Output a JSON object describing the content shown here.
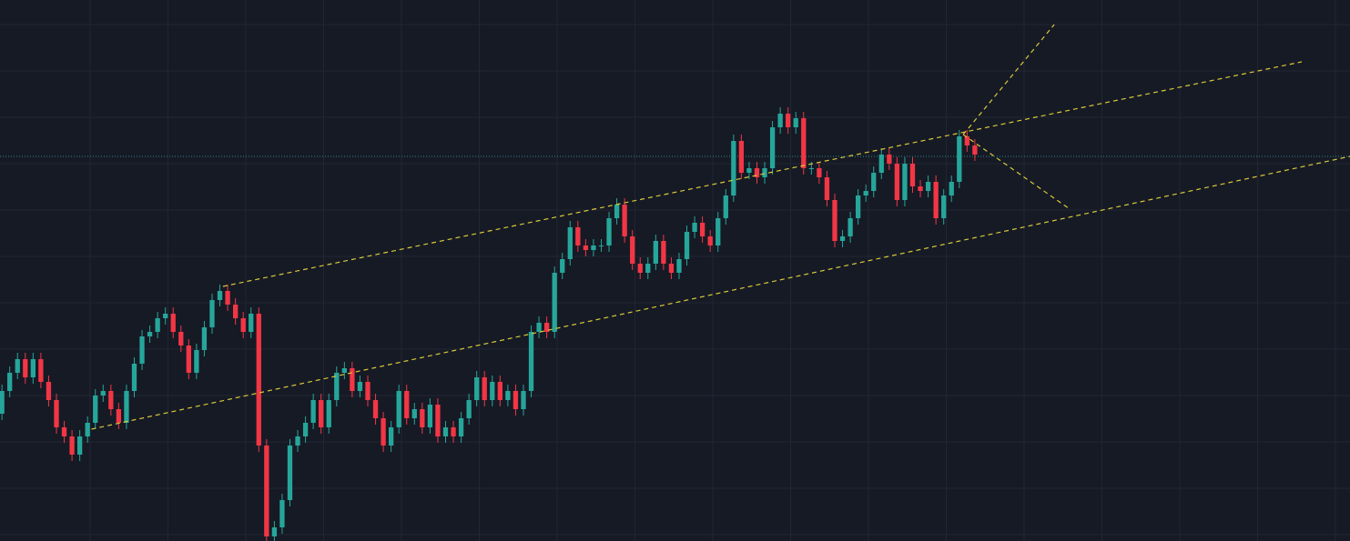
{
  "chart_data": {
    "type": "candlestick",
    "xlim": [
      -0.25,
      173.2
    ],
    "ylim": [
      0,
      595
    ],
    "grid": true,
    "up_color": "#26a69a",
    "down_color": "#f23645",
    "series": {
      "open": [
        140,
        165,
        185,
        200,
        180,
        200,
        175,
        155,
        125,
        115,
        95,
        115,
        130,
        160,
        165,
        145,
        130,
        165,
        195,
        225,
        230,
        245,
        250,
        230,
        215,
        185,
        210,
        235,
        265,
        275,
        260,
        245,
        230,
        250,
        105,
        5,
        15,
        45,
        105,
        115,
        130,
        155,
        125,
        155,
        185,
        190,
        165,
        175,
        155,
        135,
        105,
        125,
        165,
        135,
        145,
        125,
        150,
        115,
        125,
        115,
        135,
        155,
        180,
        155,
        175,
        155,
        165,
        145,
        165,
        230,
        240,
        230,
        295,
        310,
        345,
        325,
        320,
        325,
        325,
        355,
        370,
        335,
        305,
        295,
        305,
        330,
        305,
        295,
        310,
        340,
        350,
        335,
        325,
        355,
        380,
        440,
        405,
        410,
        400,
        410,
        455,
        470,
        455,
        465,
        410,
        410,
        400,
        375,
        330,
        335,
        355,
        380,
        385,
        405,
        425,
        415,
        375,
        415,
        390,
        385,
        395,
        355,
        380,
        395,
        445,
        435
      ],
      "high": [
        172,
        192,
        207,
        207,
        207,
        207,
        182,
        162,
        132,
        122,
        122,
        137,
        167,
        172,
        172,
        152,
        172,
        202,
        232,
        237,
        252,
        257,
        257,
        237,
        222,
        217,
        242,
        272,
        282,
        282,
        267,
        252,
        257,
        257,
        112,
        22,
        52,
        112,
        122,
        137,
        162,
        162,
        162,
        192,
        197,
        197,
        182,
        182,
        162,
        142,
        132,
        172,
        172,
        152,
        152,
        157,
        157,
        132,
        132,
        142,
        162,
        187,
        187,
        182,
        182,
        172,
        172,
        172,
        237,
        247,
        247,
        302,
        317,
        352,
        352,
        332,
        332,
        332,
        362,
        377,
        377,
        342,
        312,
        312,
        337,
        337,
        312,
        317,
        347,
        357,
        357,
        342,
        362,
        387,
        447,
        447,
        417,
        417,
        417,
        462,
        477,
        477,
        472,
        472,
        417,
        417,
        407,
        382,
        342,
        362,
        387,
        392,
        412,
        432,
        432,
        422,
        422,
        422,
        397,
        402,
        402,
        387,
        402,
        452,
        452,
        442
      ],
      "low": [
        133,
        158,
        178,
        173,
        173,
        168,
        148,
        118,
        108,
        88,
        88,
        108,
        123,
        153,
        138,
        123,
        123,
        158,
        188,
        218,
        223,
        238,
        223,
        208,
        178,
        178,
        203,
        228,
        258,
        253,
        238,
        223,
        223,
        98,
        0,
        0,
        8,
        38,
        98,
        108,
        123,
        118,
        118,
        148,
        178,
        158,
        158,
        148,
        128,
        98,
        98,
        118,
        128,
        128,
        118,
        118,
        108,
        108,
        108,
        108,
        128,
        148,
        148,
        148,
        148,
        148,
        138,
        138,
        158,
        223,
        223,
        223,
        288,
        303,
        318,
        313,
        313,
        318,
        318,
        348,
        328,
        298,
        288,
        288,
        298,
        298,
        288,
        288,
        303,
        333,
        328,
        318,
        318,
        348,
        373,
        398,
        398,
        393,
        393,
        403,
        448,
        448,
        448,
        403,
        403,
        393,
        368,
        323,
        323,
        328,
        348,
        373,
        378,
        398,
        408,
        368,
        368,
        383,
        378,
        378,
        348,
        348,
        373,
        388,
        428,
        418
      ],
      "close": [
        165,
        185,
        200,
        180,
        200,
        175,
        155,
        125,
        115,
        95,
        115,
        130,
        160,
        165,
        145,
        130,
        165,
        195,
        225,
        230,
        245,
        250,
        230,
        215,
        185,
        210,
        235,
        265,
        275,
        260,
        245,
        230,
        250,
        105,
        5,
        15,
        45,
        105,
        115,
        130,
        155,
        125,
        155,
        185,
        190,
        165,
        175,
        155,
        135,
        105,
        125,
        165,
        135,
        145,
        125,
        150,
        115,
        125,
        115,
        135,
        155,
        180,
        155,
        175,
        155,
        165,
        145,
        165,
        230,
        240,
        230,
        295,
        310,
        345,
        325,
        320,
        325,
        325,
        355,
        370,
        335,
        305,
        295,
        305,
        330,
        305,
        295,
        310,
        340,
        350,
        335,
        325,
        355,
        380,
        440,
        405,
        410,
        400,
        410,
        455,
        470,
        455,
        465,
        410,
        410,
        400,
        375,
        330,
        335,
        355,
        380,
        385,
        405,
        425,
        415,
        375,
        415,
        390,
        385,
        395,
        355,
        380,
        395,
        445,
        435,
        425
      ]
    },
    "trendlines": {
      "color": "#d9c93a",
      "lines": [
        {
          "x": [
            28.4,
            167.0
          ],
          "y": [
            280,
            527
          ]
        },
        {
          "x": [
            11.5,
            173.2
          ],
          "y": [
            123,
            423
          ]
        },
        {
          "x": [
            123.5,
            135.2
          ],
          "y": [
            447,
            568
          ]
        },
        {
          "x": [
            123.5,
            137.2
          ],
          "y": [
            447,
            365
          ]
        }
      ]
    },
    "price_line": {
      "value": 423,
      "color": "#2a8f8a"
    }
  }
}
